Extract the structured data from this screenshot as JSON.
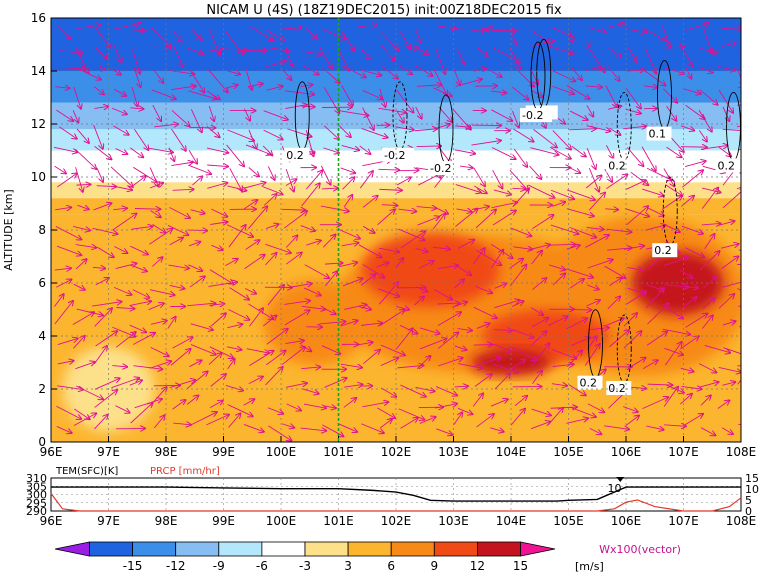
{
  "chart_data": [
    {
      "type": "heatmap",
      "title": "NICAM U (4S) (18Z19DEC2015) init:00Z18DEC2015 fix",
      "ylabel": "ALTITUDE [km]",
      "xlabel": "",
      "x_ticks": [
        "96E",
        "97E",
        "98E",
        "99E",
        "100E",
        "101E",
        "102E",
        "103E",
        "104E",
        "105E",
        "106E",
        "107E",
        "108E"
      ],
      "y_ticks": [
        "0",
        "2",
        "4",
        "6",
        "8",
        "10",
        "12",
        "14",
        "16"
      ],
      "xlim": [
        96,
        108
      ],
      "ylim": [
        0,
        16
      ],
      "grid": true,
      "marker_line_lon": 101,
      "contour_labels": [
        "0.2",
        "-0.2",
        "-0.2",
        "-0.2",
        "0.2",
        "0.1",
        "0.2",
        "0.2",
        "-0.2",
        "0.2",
        "0.2"
      ],
      "bands": [
        {
          "from": 14.0,
          "to": 16.0,
          "value": -15
        },
        {
          "from": 12.8,
          "to": 14.0,
          "value": -12
        },
        {
          "from": 11.8,
          "to": 12.8,
          "value": -9
        },
        {
          "from": 11.0,
          "to": 11.8,
          "value": -6
        },
        {
          "from": 9.8,
          "to": 11.0,
          "value": 0
        },
        {
          "from": 9.2,
          "to": 9.8,
          "value": 4
        },
        {
          "from": 8.6,
          "to": 9.2,
          "value": 7
        },
        {
          "from": 0.0,
          "to": 8.6,
          "value": 8
        }
      ],
      "blobs": [
        {
          "lon": 103.5,
          "alt": 5.2,
          "rlon": 2.6,
          "ralt": 2.6,
          "value": 10
        },
        {
          "lon": 106.3,
          "alt": 5.5,
          "rlon": 1.8,
          "ralt": 3.0,
          "value": 11
        },
        {
          "lon": 102.6,
          "alt": 6.5,
          "rlon": 1.2,
          "ralt": 1.4,
          "value": 13
        },
        {
          "lon": 104.6,
          "alt": 4.0,
          "rlon": 1.1,
          "ralt": 1.0,
          "value": 13
        },
        {
          "lon": 106.9,
          "alt": 6.0,
          "rlon": 0.8,
          "ralt": 1.2,
          "value": 15
        },
        {
          "lon": 104.0,
          "alt": 3.0,
          "rlon": 0.7,
          "ralt": 0.5,
          "value": 15
        },
        {
          "lon": 100.6,
          "alt": 4.5,
          "rlon": 0.9,
          "ralt": 1.6,
          "value": 10
        },
        {
          "lon": 97.0,
          "alt": 2.0,
          "rlon": 0.8,
          "ralt": 1.6,
          "value": 4
        }
      ]
    },
    {
      "type": "line",
      "legend": [
        "TEM(SFC)[K]",
        "PRCP [mm/hr]"
      ],
      "x_ticks": [
        "96E",
        "97E",
        "98E",
        "99E",
        "100E",
        "101E",
        "102E",
        "103E",
        "104E",
        "105E",
        "106E",
        "107E",
        "108E"
      ],
      "left_ticks": [
        "290",
        "295",
        "300",
        "305",
        "310"
      ],
      "right_ticks": [
        "0",
        "5",
        "10",
        "15"
      ],
      "annotation": "10",
      "series": [
        {
          "name": "TEM(SFC)[K]",
          "lon": [
            96,
            97,
            98,
            99,
            100,
            101,
            101.6,
            102,
            102.3,
            102.6,
            103,
            104,
            104.8,
            105,
            105.5,
            106,
            107,
            108
          ],
          "values": [
            304.5,
            304.5,
            304.5,
            304,
            303.5,
            303.5,
            302.5,
            301.5,
            299.5,
            296.5,
            296,
            296,
            296,
            296.5,
            297,
            304.5,
            304.5,
            304.5
          ]
        },
        {
          "name": "PRCP [mm/hr]",
          "lon": [
            96,
            96.2,
            96.5,
            97,
            98,
            99,
            100,
            101,
            102,
            103,
            104,
            105,
            105.5,
            105.8,
            106,
            106.2,
            106.5,
            107,
            107.5,
            107.8,
            108
          ],
          "values": [
            8,
            1,
            0,
            0,
            0,
            0,
            0,
            0,
            0,
            0,
            0,
            0,
            0,
            1,
            4,
            5,
            2,
            0,
            0,
            2,
            6
          ]
        }
      ]
    },
    {
      "type": "colorbar",
      "ticks": [
        "-15",
        "-12",
        "-9",
        "-6",
        "-3",
        "3",
        "6",
        "9",
        "12",
        "15"
      ],
      "units": "[m/s]",
      "colors": [
        "#9a1ee6",
        "#1f63e0",
        "#3c8fe9",
        "#86bdf2",
        "#b3e7fb",
        "#ffffff",
        "#fde08a",
        "#fcb52f",
        "#f78a16",
        "#f04a17",
        "#c4121e",
        "#f01393"
      ],
      "vector_label": "Wx100(vector)"
    }
  ]
}
